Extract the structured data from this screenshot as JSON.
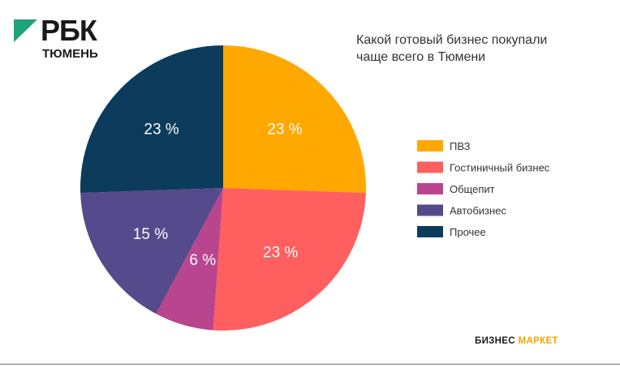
{
  "logo": {
    "brand": "РБК",
    "city": "ТЮМЕНЬ",
    "mark_color": "#20a27a"
  },
  "footer": {
    "word1": "БИЗНЕС",
    "word2": "МАРКЕТ",
    "accent": "#f5a300"
  },
  "chart_data": {
    "type": "pie",
    "title_lines": [
      "Какой готовый бизнес покупали",
      "чаще всего в Тюмени"
    ],
    "unit": "%",
    "start": "12 o'clock, clockwise",
    "slices": [
      {
        "name": "ПВЗ",
        "value": 23,
        "label": "23 %",
        "color": "#ffa800"
      },
      {
        "name": "Гостиничный бизнес",
        "value": 23,
        "label": "23 %",
        "color": "#ff5f5f"
      },
      {
        "name": "Общепит",
        "value": 6,
        "label": "6 %",
        "color": "#b9458f"
      },
      {
        "name": "Автобизнес",
        "value": 15,
        "label": "15 %",
        "color": "#554a8c"
      },
      {
        "name": "Прочее",
        "value": 23,
        "label": "23 %",
        "color": "#0c3b5c"
      }
    ]
  }
}
